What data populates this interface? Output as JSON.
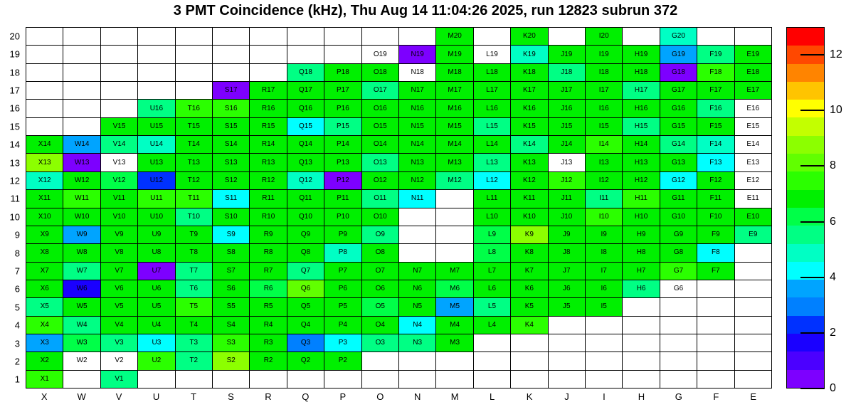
{
  "title": "3 PMT Coincidence (kHz), Thu Aug 14 11:04:26 2025, run 12823 subrun 372",
  "chart_data": {
    "type": "heatmap",
    "unit": "kHz",
    "title": "3 PMT Coincidence (kHz), Thu Aug 14 11:04:26 2025, run 12823 subrun 372",
    "x_categories": [
      "X",
      "W",
      "V",
      "U",
      "T",
      "S",
      "R",
      "Q",
      "P",
      "O",
      "N",
      "M",
      "L",
      "K",
      "J",
      "I",
      "H",
      "G",
      "F",
      "E"
    ],
    "y_categories": [
      20,
      19,
      18,
      17,
      16,
      15,
      14,
      13,
      12,
      11,
      10,
      9,
      8,
      7,
      6,
      5,
      4,
      3,
      2,
      1
    ],
    "zmin": 0,
    "zmax": 13.0,
    "colorbar_ticks": [
      0,
      2,
      4,
      6,
      8,
      10,
      12
    ],
    "palette": [
      "#7d00ff",
      "#4b00ff",
      "#1a00ff",
      "#0031ff",
      "#0080ff",
      "#00a4ff",
      "#00ffff",
      "#00ffc4",
      "#00ff84",
      "#00ff48",
      "#00f000",
      "#2bff00",
      "#61ff00",
      "#8cff00",
      "#c3ff00",
      "#ffff00",
      "#ffc400",
      "#ff8400",
      "#ff4800",
      "#ff0000"
    ],
    "cells": [
      [
        "M20",
        6.9
      ],
      [
        "K20",
        6.9
      ],
      [
        "I20",
        6.9
      ],
      [
        "G20",
        5.0
      ],
      [
        "O19",
        null
      ],
      [
        "N19",
        0.3
      ],
      [
        "M19",
        6.9
      ],
      [
        "L19",
        null
      ],
      [
        "K19",
        5.0
      ],
      [
        "J19",
        6.9
      ],
      [
        "I19",
        6.9
      ],
      [
        "H19",
        6.9
      ],
      [
        "G19",
        3.6
      ],
      [
        "F19",
        5.6
      ],
      [
        "E19",
        6.9
      ],
      [
        "Q18",
        5.6
      ],
      [
        "P18",
        6.9
      ],
      [
        "O18",
        6.9
      ],
      [
        "N18",
        null
      ],
      [
        "M18",
        6.9
      ],
      [
        "L18",
        6.9
      ],
      [
        "K18",
        6.9
      ],
      [
        "J18",
        5.6
      ],
      [
        "I18",
        6.9
      ],
      [
        "H18",
        6.9
      ],
      [
        "G18",
        0.3
      ],
      [
        "F18",
        7.6
      ],
      [
        "E18",
        6.9
      ],
      [
        "S17",
        0.3
      ],
      [
        "R17",
        6.9
      ],
      [
        "Q17",
        6.9
      ],
      [
        "P17",
        6.9
      ],
      [
        "O17",
        5.6
      ],
      [
        "N17",
        6.9
      ],
      [
        "M17",
        6.9
      ],
      [
        "L17",
        6.9
      ],
      [
        "K17",
        6.9
      ],
      [
        "J17",
        6.9
      ],
      [
        "I17",
        6.9
      ],
      [
        "H17",
        5.6
      ],
      [
        "G17",
        6.9
      ],
      [
        "F17",
        6.9
      ],
      [
        "E17",
        6.9
      ],
      [
        "U16",
        5.6
      ],
      [
        "T16",
        7.6
      ],
      [
        "S16",
        7.6
      ],
      [
        "R16",
        6.9
      ],
      [
        "Q16",
        6.9
      ],
      [
        "P16",
        6.9
      ],
      [
        "O16",
        6.9
      ],
      [
        "N16",
        6.9
      ],
      [
        "M16",
        6.9
      ],
      [
        "L16",
        6.9
      ],
      [
        "K16",
        6.9
      ],
      [
        "J16",
        6.9
      ],
      [
        "I16",
        6.9
      ],
      [
        "H16",
        6.9
      ],
      [
        "G16",
        6.9
      ],
      [
        "F16",
        5.6
      ],
      [
        "E16",
        null
      ],
      [
        "V15",
        6.9
      ],
      [
        "U15",
        6.9
      ],
      [
        "T15",
        6.9
      ],
      [
        "S15",
        6.9
      ],
      [
        "R15",
        6.9
      ],
      [
        "Q15",
        4.3
      ],
      [
        "P15",
        5.6
      ],
      [
        "O15",
        6.9
      ],
      [
        "N15",
        6.9
      ],
      [
        "M15",
        6.9
      ],
      [
        "L15",
        5.6
      ],
      [
        "K15",
        6.9
      ],
      [
        "J15",
        6.9
      ],
      [
        "I15",
        6.9
      ],
      [
        "H15",
        5.6
      ],
      [
        "G15",
        6.9
      ],
      [
        "F15",
        6.9
      ],
      [
        "E15",
        null
      ],
      [
        "X14",
        6.9
      ],
      [
        "W14",
        3.6
      ],
      [
        "V14",
        5.6
      ],
      [
        "U14",
        5.0
      ],
      [
        "T14",
        6.9
      ],
      [
        "S14",
        6.9
      ],
      [
        "R14",
        6.9
      ],
      [
        "Q14",
        6.9
      ],
      [
        "P14",
        6.9
      ],
      [
        "O14",
        6.9
      ],
      [
        "N14",
        6.9
      ],
      [
        "M14",
        6.9
      ],
      [
        "L14",
        6.9
      ],
      [
        "K14",
        5.6
      ],
      [
        "J14",
        6.9
      ],
      [
        "I14",
        7.6
      ],
      [
        "H14",
        6.9
      ],
      [
        "G14",
        5.6
      ],
      [
        "F14",
        5.0
      ],
      [
        "E14",
        null
      ],
      [
        "X13",
        8.9
      ],
      [
        "W13",
        0.3
      ],
      [
        "V13",
        null
      ],
      [
        "U13",
        6.9
      ],
      [
        "T13",
        6.9
      ],
      [
        "S13",
        6.9
      ],
      [
        "R13",
        6.9
      ],
      [
        "Q13",
        6.9
      ],
      [
        "P13",
        6.9
      ],
      [
        "O13",
        5.6
      ],
      [
        "N13",
        6.9
      ],
      [
        "M13",
        6.9
      ],
      [
        "L13",
        5.6
      ],
      [
        "K13",
        6.9
      ],
      [
        "J13",
        null
      ],
      [
        "I13",
        6.9
      ],
      [
        "H13",
        6.9
      ],
      [
        "G13",
        6.9
      ],
      [
        "F13",
        4.3
      ],
      [
        "E13",
        null
      ],
      [
        "X12",
        5.0
      ],
      [
        "W12",
        6.9
      ],
      [
        "V12",
        6.2
      ],
      [
        "U12",
        2.4
      ],
      [
        "T12",
        6.9
      ],
      [
        "S12",
        6.9
      ],
      [
        "R12",
        6.9
      ],
      [
        "Q12",
        5.0
      ],
      [
        "P12",
        0.3
      ],
      [
        "O12",
        6.9
      ],
      [
        "N12",
        6.9
      ],
      [
        "M12",
        5.6
      ],
      [
        "L12",
        4.3
      ],
      [
        "K12",
        6.9
      ],
      [
        "J12",
        7.6
      ],
      [
        "I12",
        6.9
      ],
      [
        "H12",
        6.9
      ],
      [
        "G12",
        4.3
      ],
      [
        "F12",
        6.9
      ],
      [
        "E12",
        null
      ],
      [
        "X11",
        6.9
      ],
      [
        "W11",
        7.6
      ],
      [
        "V11",
        6.9
      ],
      [
        "U11",
        7.6
      ],
      [
        "T11",
        7.6
      ],
      [
        "S11",
        4.3
      ],
      [
        "R11",
        6.9
      ],
      [
        "Q11",
        6.9
      ],
      [
        "P11",
        6.9
      ],
      [
        "O11",
        5.6
      ],
      [
        "N11",
        4.3
      ],
      [
        "L11",
        6.9
      ],
      [
        "K11",
        6.9
      ],
      [
        "J11",
        6.9
      ],
      [
        "I11",
        5.6
      ],
      [
        "H11",
        7.6
      ],
      [
        "G11",
        6.9
      ],
      [
        "F11",
        6.9
      ],
      [
        "E11",
        null
      ],
      [
        "X10",
        6.9
      ],
      [
        "W10",
        6.9
      ],
      [
        "V10",
        6.9
      ],
      [
        "U10",
        6.9
      ],
      [
        "T10",
        5.6
      ],
      [
        "S10",
        6.9
      ],
      [
        "R10",
        6.9
      ],
      [
        "Q10",
        6.9
      ],
      [
        "P10",
        6.9
      ],
      [
        "O10",
        6.9
      ],
      [
        "L10",
        6.9
      ],
      [
        "K10",
        6.9
      ],
      [
        "J10",
        6.9
      ],
      [
        "I10",
        7.6
      ],
      [
        "H10",
        6.9
      ],
      [
        "G10",
        6.9
      ],
      [
        "F10",
        6.9
      ],
      [
        "E10",
        6.9
      ],
      [
        "X9",
        6.9
      ],
      [
        "W9",
        3.6
      ],
      [
        "V9",
        6.9
      ],
      [
        "U9",
        6.9
      ],
      [
        "T9",
        6.9
      ],
      [
        "S9",
        4.3
      ],
      [
        "R9",
        6.9
      ],
      [
        "Q9",
        6.9
      ],
      [
        "P9",
        6.9
      ],
      [
        "O9",
        5.6
      ],
      [
        "L9",
        6.2
      ],
      [
        "K9",
        8.9
      ],
      [
        "J9",
        6.9
      ],
      [
        "I9",
        6.9
      ],
      [
        "H9",
        6.9
      ],
      [
        "G9",
        6.9
      ],
      [
        "F9",
        6.9
      ],
      [
        "E9",
        5.6
      ],
      [
        "X8",
        6.9
      ],
      [
        "W8",
        6.9
      ],
      [
        "V8",
        6.9
      ],
      [
        "U8",
        6.9
      ],
      [
        "T8",
        6.9
      ],
      [
        "S8",
        6.9
      ],
      [
        "R8",
        6.9
      ],
      [
        "Q8",
        6.9
      ],
      [
        "P8",
        5.0
      ],
      [
        "O8",
        6.9
      ],
      [
        "L8",
        6.2
      ],
      [
        "K8",
        6.9
      ],
      [
        "J8",
        6.9
      ],
      [
        "I8",
        6.9
      ],
      [
        "H8",
        6.9
      ],
      [
        "G8",
        6.9
      ],
      [
        "F8",
        4.3
      ],
      [
        "X7",
        6.9
      ],
      [
        "W7",
        5.6
      ],
      [
        "V7",
        6.9
      ],
      [
        "U7",
        0.3
      ],
      [
        "T7",
        5.6
      ],
      [
        "S7",
        6.9
      ],
      [
        "R7",
        6.9
      ],
      [
        "Q7",
        5.6
      ],
      [
        "P7",
        6.9
      ],
      [
        "O7",
        6.9
      ],
      [
        "N7",
        6.9
      ],
      [
        "M7",
        6.9
      ],
      [
        "L7",
        6.9
      ],
      [
        "K7",
        6.9
      ],
      [
        "J7",
        6.9
      ],
      [
        "I7",
        6.9
      ],
      [
        "H7",
        6.9
      ],
      [
        "G7",
        7.6
      ],
      [
        "F7",
        6.9
      ],
      [
        "X6",
        6.9
      ],
      [
        "W6",
        1.8
      ],
      [
        "V6",
        6.9
      ],
      [
        "U6",
        6.9
      ],
      [
        "T6",
        5.6
      ],
      [
        "S6",
        6.9
      ],
      [
        "R6",
        6.2
      ],
      [
        "Q6",
        8.3
      ],
      [
        "P6",
        6.9
      ],
      [
        "O6",
        6.9
      ],
      [
        "N6",
        6.9
      ],
      [
        "M6",
        6.2
      ],
      [
        "L6",
        6.9
      ],
      [
        "K6",
        6.9
      ],
      [
        "J6",
        6.9
      ],
      [
        "I6",
        6.9
      ],
      [
        "H6",
        5.6
      ],
      [
        "G6",
        null
      ],
      [
        "X5",
        5.6
      ],
      [
        "W5",
        6.9
      ],
      [
        "V5",
        6.9
      ],
      [
        "U5",
        6.9
      ],
      [
        "T5",
        7.6
      ],
      [
        "S5",
        6.9
      ],
      [
        "R5",
        6.9
      ],
      [
        "Q5",
        6.9
      ],
      [
        "P5",
        6.9
      ],
      [
        "O5",
        6.2
      ],
      [
        "N5",
        6.9
      ],
      [
        "M5",
        3.6
      ],
      [
        "L5",
        5.6
      ],
      [
        "K5",
        6.9
      ],
      [
        "J5",
        6.9
      ],
      [
        "I5",
        6.9
      ],
      [
        "X4",
        7.6
      ],
      [
        "W4",
        5.6
      ],
      [
        "V4",
        6.9
      ],
      [
        "U4",
        6.9
      ],
      [
        "T4",
        6.9
      ],
      [
        "S4",
        6.9
      ],
      [
        "R4",
        6.9
      ],
      [
        "Q4",
        6.9
      ],
      [
        "P4",
        6.9
      ],
      [
        "O4",
        6.9
      ],
      [
        "N4",
        4.3
      ],
      [
        "M4",
        6.9
      ],
      [
        "L4",
        6.9
      ],
      [
        "K4",
        7.6
      ],
      [
        "X3",
        3.6
      ],
      [
        "W3",
        6.2
      ],
      [
        "V3",
        5.6
      ],
      [
        "U3",
        4.3
      ],
      [
        "T3",
        5.6
      ],
      [
        "S3",
        7.6
      ],
      [
        "R3",
        6.9
      ],
      [
        "Q3",
        3.0
      ],
      [
        "P3",
        4.3
      ],
      [
        "O3",
        5.6
      ],
      [
        "N3",
        5.6
      ],
      [
        "M3",
        6.9
      ],
      [
        "X2",
        6.9
      ],
      [
        "W2",
        null
      ],
      [
        "V2",
        null
      ],
      [
        "U2",
        7.6
      ],
      [
        "T2",
        5.6
      ],
      [
        "S2",
        8.9
      ],
      [
        "R2",
        6.9
      ],
      [
        "Q2",
        6.9
      ],
      [
        "P2",
        6.9
      ],
      [
        "X1",
        7.6
      ],
      [
        "V1",
        5.6
      ]
    ]
  }
}
